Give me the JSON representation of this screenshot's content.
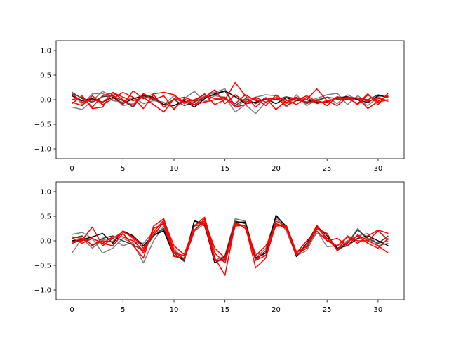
{
  "chart_data": [
    {
      "type": "line",
      "title": "",
      "xlabel": "",
      "ylabel": "",
      "xlim": [
        -1.55,
        32.55
      ],
      "ylim": [
        -1.2,
        1.2
      ],
      "xticks": [
        0,
        5,
        10,
        15,
        20,
        25,
        30
      ],
      "xtick_labels": [
        "0",
        "5",
        "10",
        "15",
        "20",
        "25",
        "30"
      ],
      "yticks": [
        -1.0,
        -0.5,
        0.0,
        0.5,
        1.0
      ],
      "ytick_labels": [
        "−1.0",
        "−0.5",
        "0.0",
        "0.5",
        "1.0"
      ],
      "grid": false,
      "x": [
        0,
        1,
        2,
        3,
        4,
        5,
        6,
        7,
        8,
        9,
        10,
        11,
        12,
        13,
        14,
        15,
        16,
        17,
        18,
        19,
        20,
        21,
        22,
        23,
        24,
        25,
        26,
        27,
        28,
        29,
        30,
        31
      ],
      "series": [
        {
          "color": "#7f7f7f",
          "values": [
            0.16,
            -0.1,
            0.12,
            0.13,
            -0.02,
            -0.05,
            0.05,
            -0.08,
            -0.02,
            -0.05,
            -0.18,
            0.02,
            0.17,
            -0.04,
            0.08,
            0.05,
            -0.25,
            -0.1,
            -0.28,
            -0.05,
            0.05,
            -0.08,
            0.02,
            -0.05,
            0.03,
            0.1,
            0.13,
            -0.1,
            0.08,
            -0.05,
            0.06,
            -0.04
          ]
        },
        {
          "color": "#7f7f7f",
          "values": [
            -0.15,
            -0.2,
            -0.02,
            0.17,
            0.06,
            -0.12,
            -0.08,
            0.07,
            0.0,
            -0.1,
            0.08,
            -0.08,
            -0.02,
            0.07,
            0.15,
            0.22,
            -0.15,
            -0.02,
            0.05,
            0.1,
            0.08,
            -0.15,
            0.1,
            -0.12,
            0.0,
            0.05,
            -0.08,
            0.1,
            0.0,
            -0.12,
            0.05,
            -0.02
          ]
        },
        {
          "color": "#3f3f3f",
          "values": [
            0.15,
            0.02,
            -0.05,
            0.06,
            0.08,
            -0.02,
            -0.15,
            0.12,
            0.02,
            -0.1,
            0.0,
            -0.12,
            -0.05,
            0.05,
            0.1,
            0.17,
            -0.12,
            0.02,
            -0.08,
            0.04,
            0.0,
            0.06,
            0.02,
            -0.05,
            -0.02,
            0.05,
            0.02,
            0.0,
            0.03,
            0.0,
            0.1,
            0.04
          ]
        },
        {
          "color": "#000000",
          "values": [
            0.08,
            -0.02,
            0.02,
            -0.05,
            0.05,
            -0.08,
            0.02,
            0.08,
            0.05,
            -0.1,
            -0.12,
            -0.02,
            -0.15,
            0.02,
            0.12,
            0.18,
            0.06,
            -0.08,
            -0.05,
            0.02,
            -0.08,
            0.04,
            -0.02,
            0.0,
            -0.06,
            -0.04,
            0.04,
            0.06,
            0.0,
            -0.06,
            0.08,
            0.06
          ]
        },
        {
          "color": "#ff0000",
          "values": [
            -0.05,
            -0.12,
            0.08,
            -0.1,
            0.02,
            0.15,
            0.05,
            -0.18,
            0.1,
            -0.15,
            0.0,
            0.05,
            -0.03,
            0.12,
            -0.1,
            0.0,
            0.35,
            0.08,
            -0.15,
            0.04,
            -0.2,
            -0.02,
            0.05,
            -0.08,
            0.0,
            -0.12,
            0.06,
            0.02,
            -0.08,
            0.12,
            -0.1,
            0.14
          ]
        },
        {
          "color": "#ff0000",
          "values": [
            0.0,
            0.05,
            -0.15,
            0.08,
            0.14,
            0.0,
            -0.12,
            0.12,
            0.0,
            0.08,
            -0.2,
            0.02,
            -0.1,
            0.05,
            0.2,
            -0.08,
            0.1,
            -0.05,
            0.02,
            -0.12,
            0.1,
            -0.06,
            0.04,
            0.0,
            0.22,
            -0.02,
            -0.12,
            0.05,
            0.03,
            -0.03,
            0.02,
            0.05
          ]
        },
        {
          "color": "#ff0000",
          "values": [
            0.12,
            -0.05,
            0.0,
            -0.05,
            0.1,
            -0.1,
            0.18,
            0.02,
            0.12,
            0.15,
            0.1,
            -0.05,
            0.0,
            0.1,
            0.02,
            0.05,
            -0.15,
            -0.1,
            0.05,
            -0.05,
            0.04,
            0.0,
            -0.1,
            0.05,
            -0.08,
            -0.02,
            0.0,
            0.05,
            -0.1,
            0.1,
            -0.05,
            0.0
          ]
        },
        {
          "color": "#ff0000",
          "values": [
            -0.08,
            0.08,
            -0.18,
            -0.15,
            0.15,
            0.05,
            -0.02,
            0.05,
            -0.1,
            -0.25,
            0.02,
            -0.05,
            -0.1,
            -0.05,
            0.0,
            0.02,
            -0.08,
            0.1,
            -0.02,
            0.0,
            0.04,
            -0.12,
            -0.02,
            0.08,
            -0.04,
            -0.06,
            0.06,
            0.02,
            0.04,
            -0.18,
            -0.03,
            0.08
          ]
        }
      ]
    },
    {
      "type": "line",
      "title": "",
      "xlabel": "",
      "ylabel": "",
      "xlim": [
        -1.55,
        32.55
      ],
      "ylim": [
        -1.2,
        1.2
      ],
      "xticks": [
        0,
        5,
        10,
        15,
        20,
        25,
        30
      ],
      "xtick_labels": [
        "0",
        "5",
        "10",
        "15",
        "20",
        "25",
        "30"
      ],
      "yticks": [
        -1.0,
        -0.5,
        0.0,
        0.5,
        1.0
      ],
      "ytick_labels": [
        "−1.0",
        "−0.5",
        "0.0",
        "0.5",
        "1.0"
      ],
      "grid": false,
      "x": [
        0,
        1,
        2,
        3,
        4,
        5,
        6,
        7,
        8,
        9,
        10,
        11,
        12,
        13,
        14,
        15,
        16,
        17,
        18,
        19,
        20,
        21,
        22,
        23,
        24,
        25,
        26,
        27,
        28,
        29,
        30,
        31
      ],
      "series": [
        {
          "color": "#7f7f7f",
          "values": [
            0.13,
            0.17,
            0.05,
            -0.25,
            -0.15,
            0.05,
            -0.05,
            -0.45,
            0.0,
            0.3,
            -0.22,
            -0.38,
            0.2,
            0.35,
            -0.45,
            -0.35,
            0.4,
            0.25,
            -0.25,
            -0.3,
            0.45,
            0.25,
            -0.25,
            -0.1,
            0.15,
            0.05,
            -0.15,
            -0.05,
            0.25,
            0.02,
            -0.05,
            0.0
          ]
        },
        {
          "color": "#7f7f7f",
          "values": [
            -0.25,
            0.05,
            -0.15,
            0.02,
            0.05,
            -0.1,
            -0.02,
            -0.05,
            0.18,
            0.22,
            -0.15,
            -0.4,
            0.32,
            0.4,
            -0.4,
            -0.3,
            0.45,
            0.4,
            -0.35,
            -0.15,
            0.5,
            0.2,
            -0.3,
            -0.2,
            0.2,
            -0.12,
            -0.1,
            0.0,
            0.1,
            0.15,
            -0.1,
            -0.05
          ]
        },
        {
          "color": "#3f3f3f",
          "values": [
            0.05,
            0.1,
            -0.1,
            0.05,
            0.1,
            0.0,
            -0.08,
            -0.2,
            0.1,
            0.25,
            -0.25,
            -0.42,
            0.42,
            0.3,
            -0.4,
            -0.38,
            0.4,
            0.35,
            -0.4,
            -0.2,
            0.5,
            0.3,
            -0.28,
            -0.15,
            0.25,
            0.15,
            -0.2,
            -0.05,
            0.22,
            0.05,
            -0.05,
            0.1
          ]
        },
        {
          "color": "#000000",
          "values": [
            0.0,
            0.02,
            0.08,
            0.15,
            -0.05,
            0.2,
            0.1,
            -0.1,
            0.12,
            0.2,
            -0.3,
            -0.38,
            0.4,
            0.35,
            -0.45,
            -0.32,
            0.38,
            0.38,
            -0.35,
            -0.25,
            0.52,
            0.28,
            -0.32,
            -0.05,
            0.3,
            0.1,
            -0.15,
            -0.1,
            0.05,
            0.1,
            0.0,
            -0.1
          ]
        },
        {
          "color": "#ff0000",
          "values": [
            0.05,
            -0.05,
            0.05,
            -0.05,
            -0.1,
            0.15,
            -0.1,
            -0.35,
            0.3,
            0.45,
            -0.2,
            -0.38,
            0.2,
            0.45,
            -0.35,
            -0.7,
            0.35,
            0.3,
            -0.55,
            -0.35,
            0.35,
            0.28,
            -0.3,
            -0.1,
            0.25,
            0.15,
            -0.2,
            0.1,
            0.0,
            0.0,
            -0.1,
            -0.25
          ]
        },
        {
          "color": "#ff0000",
          "values": [
            -0.05,
            0.02,
            0.28,
            -0.1,
            0.05,
            0.18,
            0.08,
            -0.15,
            0.12,
            0.38,
            -0.25,
            -0.3,
            0.22,
            0.4,
            -0.15,
            -0.35,
            0.35,
            0.3,
            -0.4,
            -0.3,
            0.35,
            0.25,
            -0.25,
            0.0,
            0.2,
            0.0,
            0.05,
            -0.1,
            0.12,
            0.0,
            0.2,
            0.02
          ]
        },
        {
          "color": "#ff0000",
          "values": [
            0.08,
            0.05,
            -0.08,
            0.0,
            -0.02,
            0.2,
            0.05,
            -0.25,
            0.25,
            0.35,
            -0.32,
            -0.35,
            0.3,
            0.35,
            -0.4,
            -0.4,
            0.38,
            0.25,
            -0.38,
            -0.2,
            0.4,
            0.3,
            -0.28,
            -0.15,
            0.28,
            0.05,
            -0.18,
            -0.02,
            0.1,
            -0.05,
            -0.15,
            0.05
          ]
        },
        {
          "color": "#ff0000",
          "values": [
            -0.02,
            0.0,
            0.05,
            -0.05,
            0.08,
            0.08,
            0.0,
            -0.2,
            0.18,
            0.42,
            -0.1,
            -0.28,
            0.3,
            0.48,
            -0.25,
            -0.45,
            0.3,
            0.32,
            -0.3,
            -0.1,
            0.3,
            0.32,
            -0.22,
            -0.12,
            0.32,
            0.0,
            -0.1,
            0.08,
            -0.05,
            0.1,
            0.22,
            0.15
          ]
        }
      ]
    }
  ]
}
